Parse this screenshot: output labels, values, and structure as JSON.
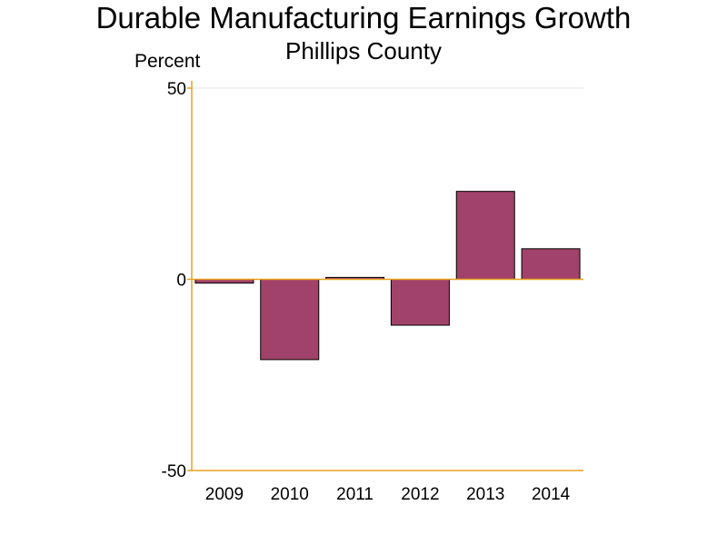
{
  "chart_data": {
    "type": "bar",
    "title": "Durable Manufacturing Earnings Growth",
    "subtitle": "Phillips County",
    "ylabel": "Percent",
    "xlabel": "",
    "categories": [
      "2009",
      "2010",
      "2011",
      "2012",
      "2013",
      "2014"
    ],
    "values": [
      -1,
      -21,
      0.5,
      -12,
      23,
      8
    ],
    "ylim": [
      -50,
      50
    ],
    "yticks": [
      "-50",
      "0",
      "50"
    ],
    "grid": true,
    "legend": "none",
    "colors": {
      "bar": "#a0426a",
      "bar_edge": "#000000",
      "axis": "#e8a020",
      "grid": "#e6e6e6",
      "zero_line": "#e8a020"
    }
  }
}
